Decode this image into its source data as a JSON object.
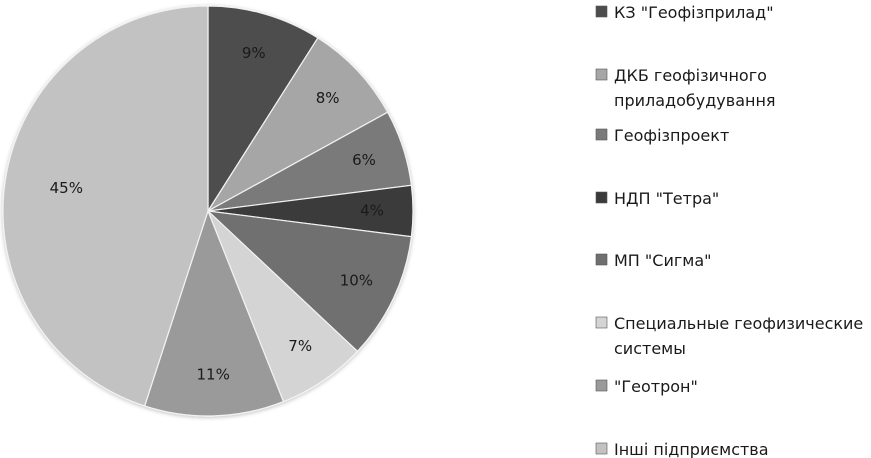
{
  "chart_data": {
    "type": "pie",
    "categories": [
      "КЗ \"Геофізприлад\"",
      "ДКБ геофізичного приладобудування",
      "Геофізпроект",
      "НДП \"Тетра\"",
      "МП \"Сигма\"",
      "Специальные геофизические системы",
      "\"Геотрон\"",
      "Інші підприємства"
    ],
    "values": [
      9,
      8,
      6,
      4,
      10,
      7,
      11,
      45
    ],
    "value_labels": [
      "9%",
      "8%",
      "6%",
      "4%",
      "10%",
      "7%",
      "11%",
      "45%"
    ],
    "legend_lines": [
      [
        "КЗ \"Геофізприлад\""
      ],
      [
        "ДКБ геофізичного",
        "приладобудування"
      ],
      [
        "Геофізпроект"
      ],
      [
        "НДП \"Тетра\""
      ],
      [
        "МП \"Сигма\""
      ],
      [
        "Специальные геофизические",
        "системы"
      ],
      [
        "\"Геотрон\""
      ],
      [
        "Інші підприємства"
      ]
    ],
    "colors": [
      "#4d4d4d",
      "#a6a6a6",
      "#7a7a7a",
      "#3a3a3a",
      "#6f6f6f",
      "#d4d4d4",
      "#9a9a9a",
      "#c2c2c2"
    ],
    "start_angle_deg": 0,
    "direction": "clockwise",
    "legend_position": "right",
    "title": ""
  }
}
